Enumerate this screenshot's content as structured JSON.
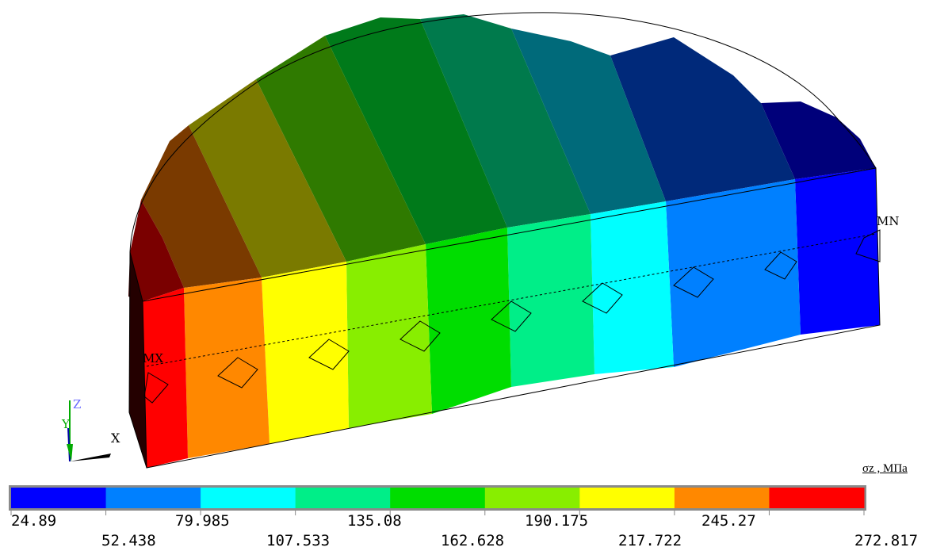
{
  "markers": {
    "max": "MX",
    "min": "MN"
  },
  "triad": {
    "z": "Z",
    "y": "Y",
    "x": "X"
  },
  "legend": {
    "unit_label": "σz , МПа",
    "colors": [
      "#0000ff",
      "#0080ff",
      "#00ffff",
      "#00ee88",
      "#00dd00",
      "#88ee00",
      "#ffff00",
      "#ff8800",
      "#ff0000"
    ],
    "ticks_top": [
      "24.89",
      "79.985",
      "135.08",
      "190.175",
      "245.27"
    ],
    "ticks_bottom": [
      "52.438",
      "107.533",
      "162.628",
      "217.722",
      "272.817"
    ]
  }
}
